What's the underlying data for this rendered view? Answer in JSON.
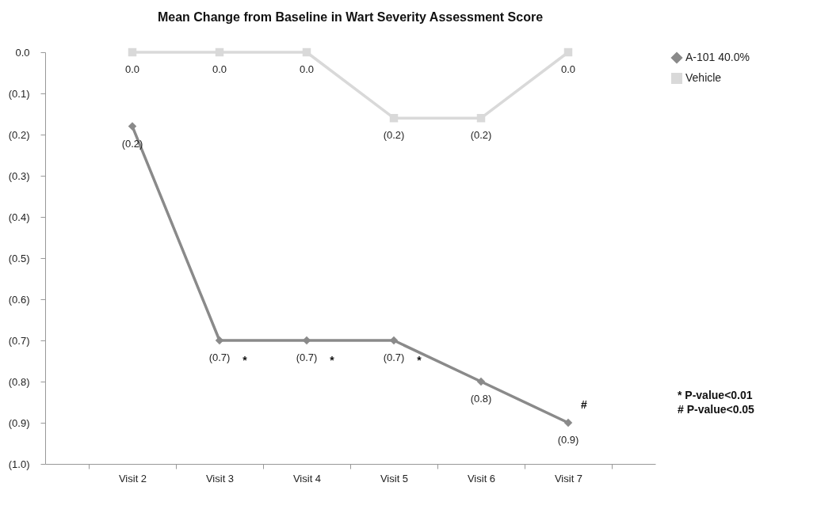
{
  "chart_data": {
    "type": "line",
    "title": "Mean Change from Baseline in Wart Severity Assessment Score",
    "categories": [
      "Visit 2",
      "Visit 3",
      "Visit 4",
      "Visit 5",
      "Visit 6",
      "Visit 7"
    ],
    "series": [
      {
        "name": "A-101 40.0%",
        "color": "#8a8a8a",
        "marker": "diamond",
        "values": [
          -0.18,
          -0.7,
          -0.7,
          -0.7,
          -0.8,
          -0.9
        ],
        "value_labels": [
          "(0.2)",
          "(0.7)",
          "(0.7)",
          "(0.7)",
          "(0.8)",
          "(0.9)"
        ]
      },
      {
        "name": "Vehicle",
        "color": "#d9d9d9",
        "marker": "square",
        "values": [
          0,
          0,
          0,
          -0.16,
          -0.16,
          0
        ],
        "value_labels": [
          "0.0",
          "0.0",
          "0.0",
          "(0.2)",
          "(0.2)",
          "0.0"
        ]
      }
    ],
    "ylim": [
      -1.0,
      0
    ],
    "yticks": [
      {
        "value": 0,
        "label": "0.0"
      },
      {
        "value": -0.1,
        "label": "(0.1)"
      },
      {
        "value": -0.2,
        "label": "(0.2)"
      },
      {
        "value": -0.3,
        "label": "(0.3)"
      },
      {
        "value": -0.4,
        "label": "(0.4)"
      },
      {
        "value": -0.5,
        "label": "(0.5)"
      },
      {
        "value": -0.6,
        "label": "(0.6)"
      },
      {
        "value": -0.7,
        "label": "(0.7)"
      },
      {
        "value": -0.8,
        "label": "(0.8)"
      },
      {
        "value": -0.9,
        "label": "(0.9)"
      },
      {
        "value": -1.0,
        "label": "(1.0)"
      }
    ],
    "grid": false,
    "legend": "right",
    "annotations": [
      {
        "text": "*",
        "x": "Visit 3",
        "y": -0.7
      },
      {
        "text": "*",
        "x": "Visit 4",
        "y": -0.7
      },
      {
        "text": "*",
        "x": "Visit 5",
        "y": -0.7
      },
      {
        "text": "#",
        "x": "Visit 7",
        "y": -0.9
      },
      "* P-value<0.01",
      "# P-value<0.05"
    ]
  }
}
